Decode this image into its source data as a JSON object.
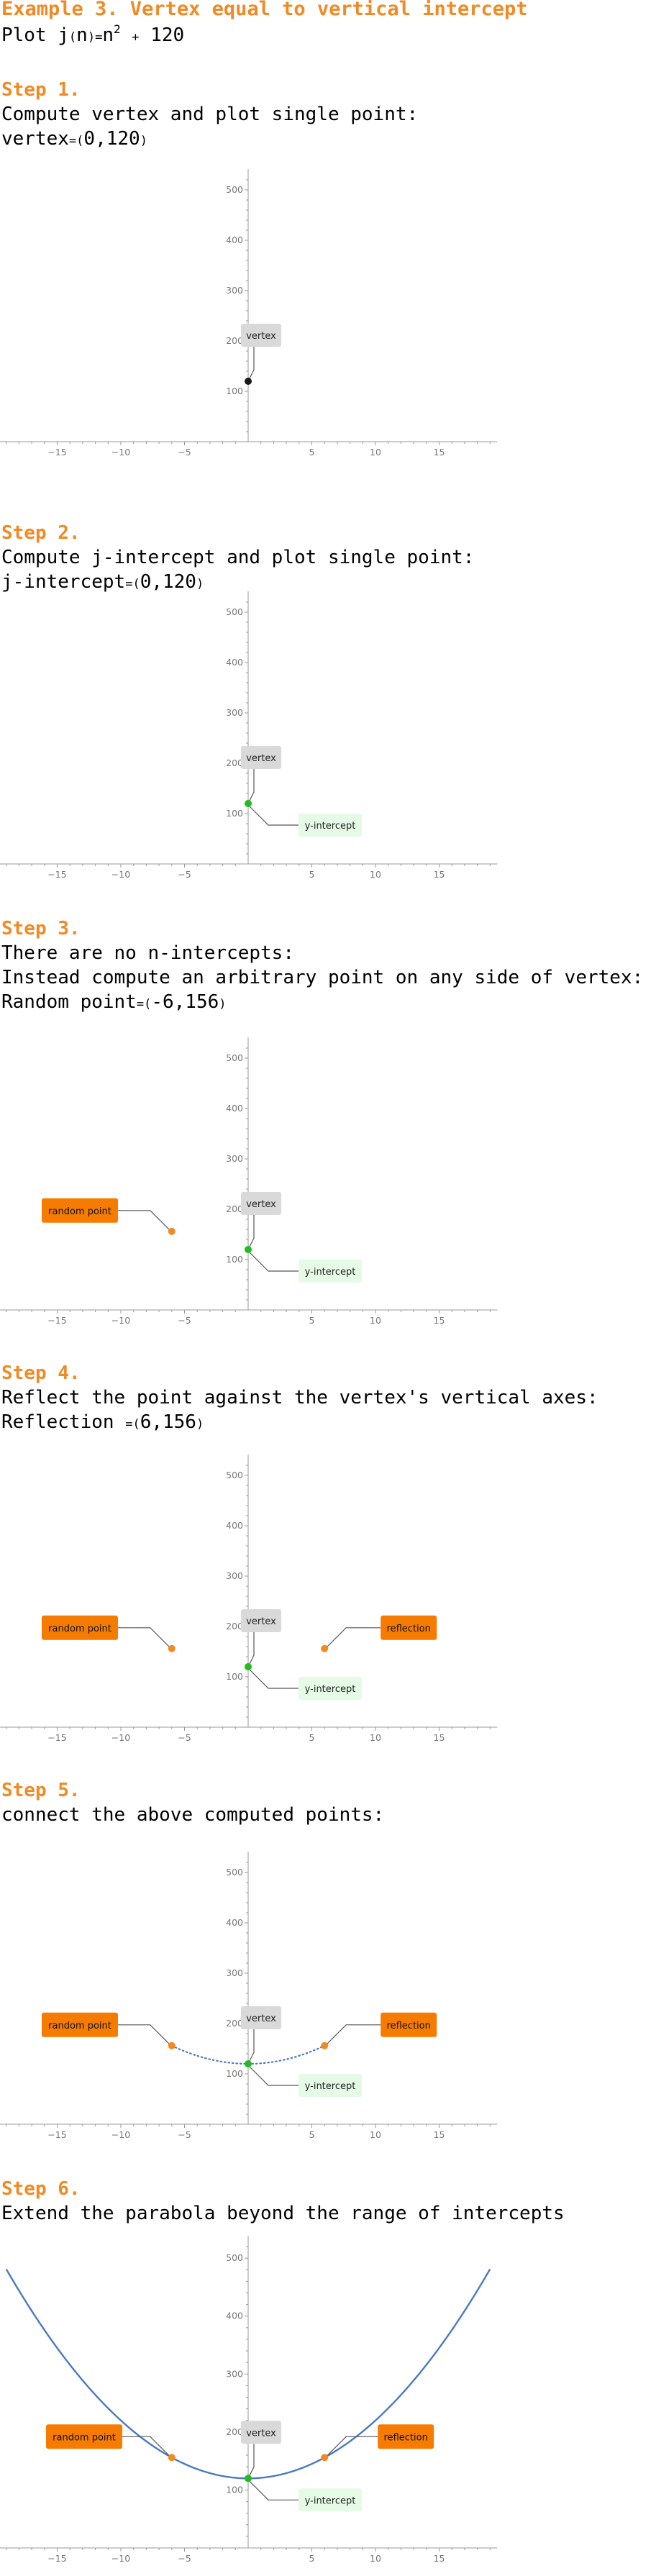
{
  "title": "Example 3. Vertex equal to vertical intercept",
  "intro": {
    "plot_word": "Plot j",
    "paren_open": "(",
    "var": "n",
    "paren_close": ")",
    "eq": "=",
    "base": "n",
    "exp": "2",
    "plus": "+",
    "const": "120"
  },
  "steps": [
    {
      "heading": "Step 1.",
      "lines": [
        "Compute vertex and plot single point:"
      ],
      "result": {
        "name": "vertex",
        "eq": "=",
        "open": "(",
        "value": "0,120",
        "close": ")"
      }
    },
    {
      "heading": "Step 2.",
      "lines": [
        "Compute j-intercept and plot single point:"
      ],
      "result": {
        "name": "j-intercept",
        "eq": "=",
        "open": "(",
        "value": "0,120",
        "close": ")"
      }
    },
    {
      "heading": "Step 3.",
      "lines": [
        "There are no n-intercepts:",
        "Instead compute an arbitrary point on any side of vertex:"
      ],
      "result": {
        "name": "Random point",
        "eq": "=",
        "open": "(",
        "value": "-6,156",
        "close": ")"
      }
    },
    {
      "heading": "Step 4.",
      "lines": [
        "Reflect the point against the vertex's vertical axes:"
      ],
      "result": {
        "name": "Reflection ",
        "eq": "=",
        "open": "(",
        "value": "6,156",
        "close": ")"
      }
    },
    {
      "heading": "Step 5.",
      "lines": [
        "connect the above computed points:"
      ],
      "result": null
    },
    {
      "heading": "Step 6.",
      "lines": [
        "Extend the parabola beyond the range of intercepts"
      ],
      "result": null
    }
  ],
  "labels": {
    "vertex": "vertex",
    "y_intercept": "y-intercept",
    "random_point": "random point",
    "reflection": "reflection"
  },
  "colors": {
    "heading": "#f08a24",
    "vertex_black": "#1a1a1a",
    "intercept_green": "#22bb22",
    "point_orange": "#f08a24",
    "curve_blue": "#4a79c4",
    "vertex_label_bg": "#d9d9d9",
    "intercept_label_bg": "#e6fbe6",
    "orange_label_bg": "#f57c00"
  },
  "chart_data": [
    {
      "type": "scatter",
      "xlim": [
        -19,
        19
      ],
      "ylim": [
        0,
        520
      ],
      "x_ticks": [
        "-15",
        "-10",
        "-5",
        "5",
        "10",
        "15"
      ],
      "y_ticks": [
        "100",
        "200",
        "300",
        "400",
        "500"
      ],
      "points": [
        {
          "x": 0,
          "y": 120,
          "color": "vertex_black",
          "label": "vertex"
        }
      ]
    },
    {
      "type": "scatter",
      "xlim": [
        -19,
        19
      ],
      "ylim": [
        0,
        520
      ],
      "x_ticks": [
        "-15",
        "-10",
        "-5",
        "5",
        "10",
        "15"
      ],
      "y_ticks": [
        "100",
        "200",
        "300",
        "400",
        "500"
      ],
      "points": [
        {
          "x": 0,
          "y": 120,
          "color": "intercept_green",
          "label": "vertex",
          "label2": "y_intercept"
        }
      ]
    },
    {
      "type": "scatter",
      "xlim": [
        -19,
        19
      ],
      "ylim": [
        0,
        520
      ],
      "x_ticks": [
        "-15",
        "-10",
        "-5",
        "5",
        "10",
        "15"
      ],
      "y_ticks": [
        "100",
        "200",
        "300",
        "400",
        "500"
      ],
      "points": [
        {
          "x": 0,
          "y": 120,
          "color": "intercept_green",
          "label": "vertex",
          "label2": "y_intercept"
        },
        {
          "x": -6,
          "y": 156,
          "color": "point_orange",
          "label": "random_point"
        }
      ]
    },
    {
      "type": "scatter",
      "xlim": [
        -19,
        19
      ],
      "ylim": [
        0,
        520
      ],
      "x_ticks": [
        "-15",
        "-10",
        "-5",
        "5",
        "10",
        "15"
      ],
      "y_ticks": [
        "100",
        "200",
        "300",
        "400",
        "500"
      ],
      "points": [
        {
          "x": 0,
          "y": 120,
          "color": "intercept_green",
          "label": "vertex",
          "label2": "y_intercept"
        },
        {
          "x": -6,
          "y": 156,
          "color": "point_orange",
          "label": "random_point"
        },
        {
          "x": 6,
          "y": 156,
          "color": "point_orange",
          "label": "reflection"
        }
      ]
    },
    {
      "type": "line",
      "xlim": [
        -19,
        19
      ],
      "ylim": [
        0,
        520
      ],
      "x_ticks": [
        "-15",
        "-10",
        "-5",
        "5",
        "10",
        "15"
      ],
      "y_ticks": [
        "100",
        "200",
        "300",
        "400",
        "500"
      ],
      "curve": {
        "domain": [
          -6,
          6
        ],
        "style": "dotted"
      },
      "points": [
        {
          "x": 0,
          "y": 120,
          "color": "intercept_green",
          "label": "vertex",
          "label2": "y_intercept"
        },
        {
          "x": -6,
          "y": 156,
          "color": "point_orange",
          "label": "random_point"
        },
        {
          "x": 6,
          "y": 156,
          "color": "point_orange",
          "label": "reflection"
        }
      ]
    },
    {
      "type": "line",
      "xlim": [
        -19,
        19
      ],
      "ylim": [
        0,
        520
      ],
      "x_ticks": [
        "-15",
        "-10",
        "-5",
        "5",
        "10",
        "15"
      ],
      "y_ticks": [
        "100",
        "200",
        "300",
        "400",
        "500"
      ],
      "curve": {
        "domain": [
          -19,
          19
        ],
        "style": "solid"
      },
      "points": [
        {
          "x": 0,
          "y": 120,
          "color": "intercept_green",
          "label": "vertex",
          "label2": "y_intercept"
        },
        {
          "x": -6,
          "y": 156,
          "color": "point_orange",
          "label": "random_point"
        },
        {
          "x": 6,
          "y": 156,
          "color": "point_orange",
          "label": "reflection"
        }
      ]
    }
  ]
}
